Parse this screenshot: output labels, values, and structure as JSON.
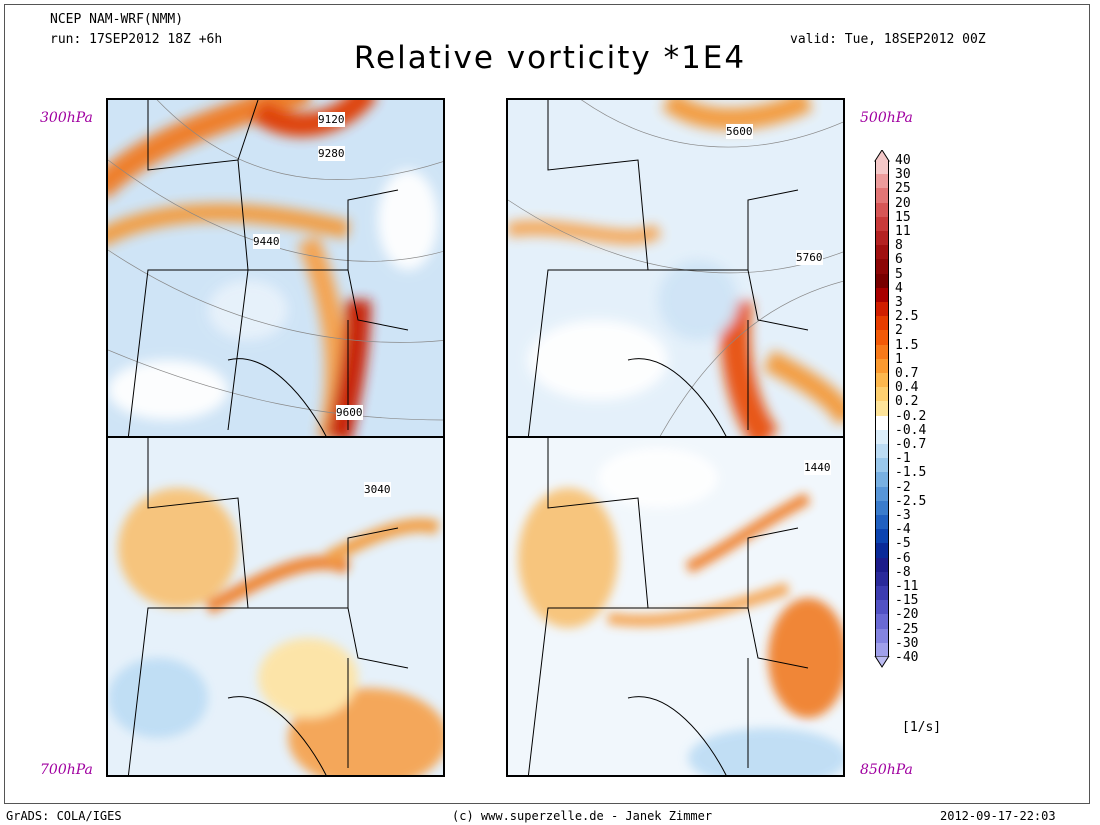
{
  "header": {
    "model": "NCEP NAM-WRF(NMM)",
    "run": "run: 17SEP2012 18Z +6h",
    "valid": "valid: Tue, 18SEP2012 00Z",
    "title": "Relative vorticity *1E4"
  },
  "levels": {
    "top_left": "300hPa",
    "top_right": "500hPa",
    "bottom_left": "700hPa",
    "bottom_right": "850hPa"
  },
  "contour_labels": {
    "top_left": [
      "9120",
      "9280",
      "9440",
      "9600"
    ],
    "top_right": [
      "5600",
      "5760"
    ],
    "bottom_left": [
      "3040"
    ],
    "bottom_right": [
      "1440"
    ]
  },
  "colorbar": {
    "levels": [
      "40",
      "30",
      "25",
      "20",
      "15",
      "11",
      "8",
      "6",
      "5",
      "4",
      "3",
      "2.5",
      "2",
      "1.5",
      "1",
      "0.7",
      "0.4",
      "0.2",
      "-0.2",
      "-0.4",
      "-0.7",
      "-1",
      "-1.5",
      "-2",
      "-2.5",
      "-3",
      "-4",
      "-5",
      "-6",
      "-8",
      "-11",
      "-15",
      "-20",
      "-25",
      "-30",
      "-40"
    ],
    "colors": [
      "#f4c8c8",
      "#ec9c9c",
      "#e27676",
      "#d65656",
      "#c83a3a",
      "#b42222",
      "#a01010",
      "#8c0606",
      "#780000",
      "#a80000",
      "#d01e00",
      "#e63c00",
      "#f25a08",
      "#f77a1a",
      "#fb9a30",
      "#fdb84e",
      "#fed070",
      "#fee49a",
      "#ffffff",
      "#dceefa",
      "#bcdcf4",
      "#9ac8ec",
      "#78b0e2",
      "#5896d8",
      "#3a7ccc",
      "#2060c0",
      "#0c44b0",
      "#0a2a98",
      "#1c1c8a",
      "#2a2a9a",
      "#3c3cb0",
      "#5252c4",
      "#6a6ad4",
      "#8484e0",
      "#a0a0ea",
      "#bcbcf2"
    ],
    "units": "[1/s]"
  },
  "footer": {
    "left": "GrADS: COLA/IGES",
    "center": "(c) www.superzelle.de - Janek Zimmer",
    "right": "2012-09-17-22:03"
  }
}
